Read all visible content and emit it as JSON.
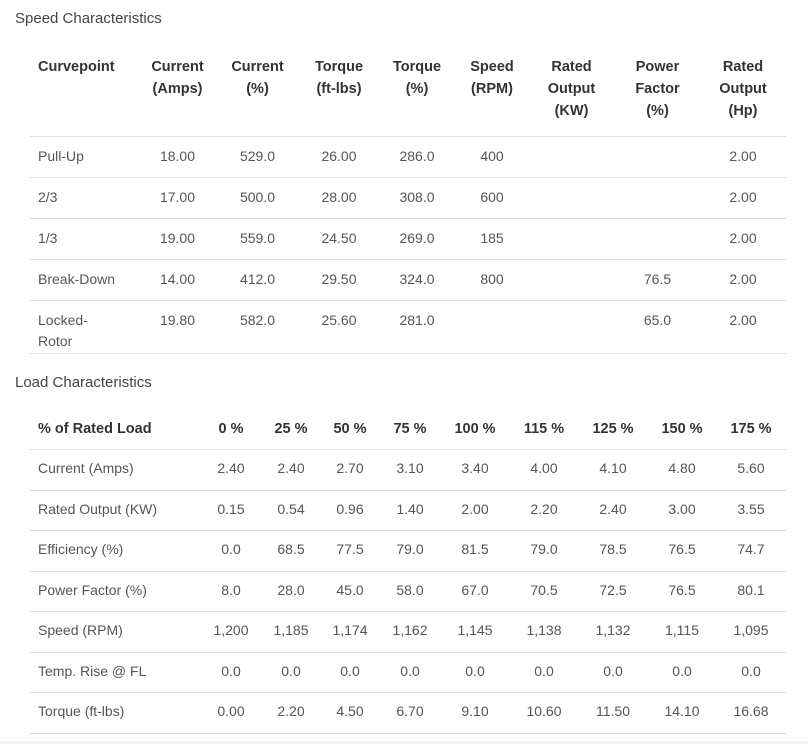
{
  "speed": {
    "title": "Speed Characteristics",
    "headers": [
      [
        "Curvepoint"
      ],
      [
        "Current",
        "(Amps)"
      ],
      [
        "Current",
        "(%)"
      ],
      [
        "Torque",
        "(ft-lbs)"
      ],
      [
        "Torque",
        "(%)"
      ],
      [
        "Speed",
        "(RPM)"
      ],
      [
        "Rated",
        "Output",
        "(KW)"
      ],
      [
        "Power",
        "Factor",
        "(%)"
      ],
      [
        "Rated",
        "Output",
        "(Hp)"
      ]
    ],
    "rows": [
      [
        "Pull-Up",
        "18.00",
        "529.0",
        "26.00",
        "286.0",
        "400",
        "",
        "",
        "2.00"
      ],
      [
        "2/3",
        "17.00",
        "500.0",
        "28.00",
        "308.0",
        "600",
        "",
        "",
        "2.00"
      ],
      [
        "1/3",
        "19.00",
        "559.0",
        "24.50",
        "269.0",
        "185",
        "",
        "",
        "2.00"
      ],
      [
        "Break-Down",
        "14.00",
        "412.0",
        "29.50",
        "324.0",
        "800",
        "",
        "76.5",
        "2.00"
      ],
      [
        "Locked-\nRotor",
        "19.80",
        "582.0",
        "25.60",
        "281.0",
        "",
        "",
        "65.0",
        "2.00"
      ]
    ]
  },
  "load": {
    "title": "Load Characteristics",
    "headers": [
      "% of Rated Load",
      "0 %",
      "25 %",
      "50 %",
      "75 %",
      "100 %",
      "115 %",
      "125 %",
      "150 %",
      "175 %"
    ],
    "rows": [
      [
        "Current (Amps)",
        "2.40",
        "2.40",
        "2.70",
        "3.10",
        "3.40",
        "4.00",
        "4.10",
        "4.80",
        "5.60"
      ],
      [
        "Rated Output (KW)",
        "0.15",
        "0.54",
        "0.96",
        "1.40",
        "2.00",
        "2.20",
        "2.40",
        "3.00",
        "3.55"
      ],
      [
        "Efficiency (%)",
        "0.0",
        "68.5",
        "77.5",
        "79.0",
        "81.5",
        "79.0",
        "78.5",
        "76.5",
        "74.7"
      ],
      [
        "Power Factor (%)",
        "8.0",
        "28.0",
        "45.0",
        "58.0",
        "67.0",
        "70.5",
        "72.5",
        "76.5",
        "80.1"
      ],
      [
        "Speed (RPM)",
        "1,200",
        "1,185",
        "1,174",
        "1,162",
        "1,145",
        "1,138",
        "1,132",
        "1,115",
        "1,095"
      ],
      [
        "Temp. Rise @ FL",
        "0.0",
        "0.0",
        "0.0",
        "0.0",
        "0.0",
        "0.0",
        "0.0",
        "0.0",
        "0.0"
      ],
      [
        "Torque (ft-lbs)",
        "0.00",
        "2.20",
        "4.50",
        "6.70",
        "9.10",
        "10.60",
        "11.50",
        "14.10",
        "16.68"
      ]
    ]
  }
}
